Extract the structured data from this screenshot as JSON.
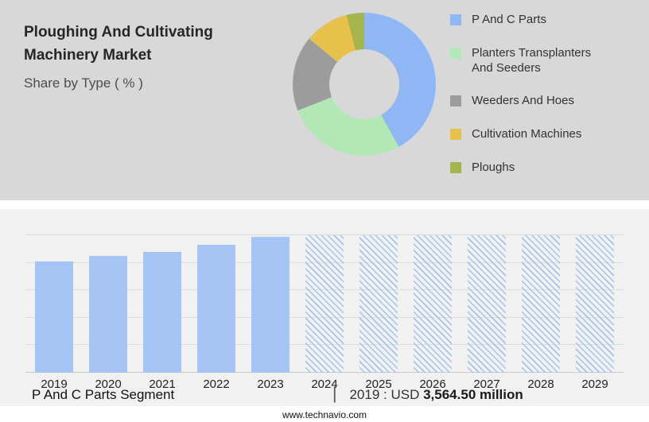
{
  "header": {
    "title_line1": "Ploughing And Cultivating",
    "title_line2": "Machinery Market",
    "subtitle": "Share by Type ( % )"
  },
  "chart_data": [
    {
      "type": "pie",
      "donut": true,
      "title": "Share by Type ( % )",
      "labels": [
        "P And C Parts",
        "Planters Transplanters And Seeders",
        "Weeders And Hoes",
        "Cultivation Machines",
        "Ploughs"
      ],
      "values": [
        42,
        27,
        17,
        10,
        4
      ],
      "unit": "%",
      "colors": [
        "#8fb7f3",
        "#b2e8b5",
        "#9c9c9c",
        "#e6c24d",
        "#a4b54d"
      ],
      "legend_position": "right",
      "hole_color": "#d8d8d8"
    },
    {
      "type": "bar",
      "title": "P And C Parts Segment",
      "categories": [
        "2019",
        "2020",
        "2021",
        "2022",
        "2023",
        "2024",
        "2025",
        "2026",
        "2027",
        "2028",
        "2029"
      ],
      "bars": [
        {
          "year": "2019",
          "height_pct": 81,
          "style": "solid"
        },
        {
          "year": "2020",
          "height_pct": 85,
          "style": "solid"
        },
        {
          "year": "2021",
          "height_pct": 88,
          "style": "solid"
        },
        {
          "year": "2022",
          "height_pct": 93,
          "style": "solid"
        },
        {
          "year": "2023",
          "height_pct": 99,
          "style": "solid"
        },
        {
          "year": "2024",
          "height_pct": 100,
          "style": "hatched"
        },
        {
          "year": "2025",
          "height_pct": 100,
          "style": "hatched"
        },
        {
          "year": "2026",
          "height_pct": 100,
          "style": "hatched"
        },
        {
          "year": "2027",
          "height_pct": 100,
          "style": "hatched"
        },
        {
          "year": "2028",
          "height_pct": 100,
          "style": "hatched"
        },
        {
          "year": "2029",
          "height_pct": 100,
          "style": "hatched"
        }
      ],
      "bar_color": "#a5c4f3",
      "forecast_years_style": "hatched",
      "grid": true,
      "annotation": "2019 : USD 3,564.50 million"
    }
  ],
  "caption": {
    "segment_label": "P And C Parts Segment",
    "separator": "|",
    "value_prefix": "2019 : USD",
    "value_bold": "3,564.50 million"
  },
  "footer": {
    "url": "www.technavio.com"
  }
}
